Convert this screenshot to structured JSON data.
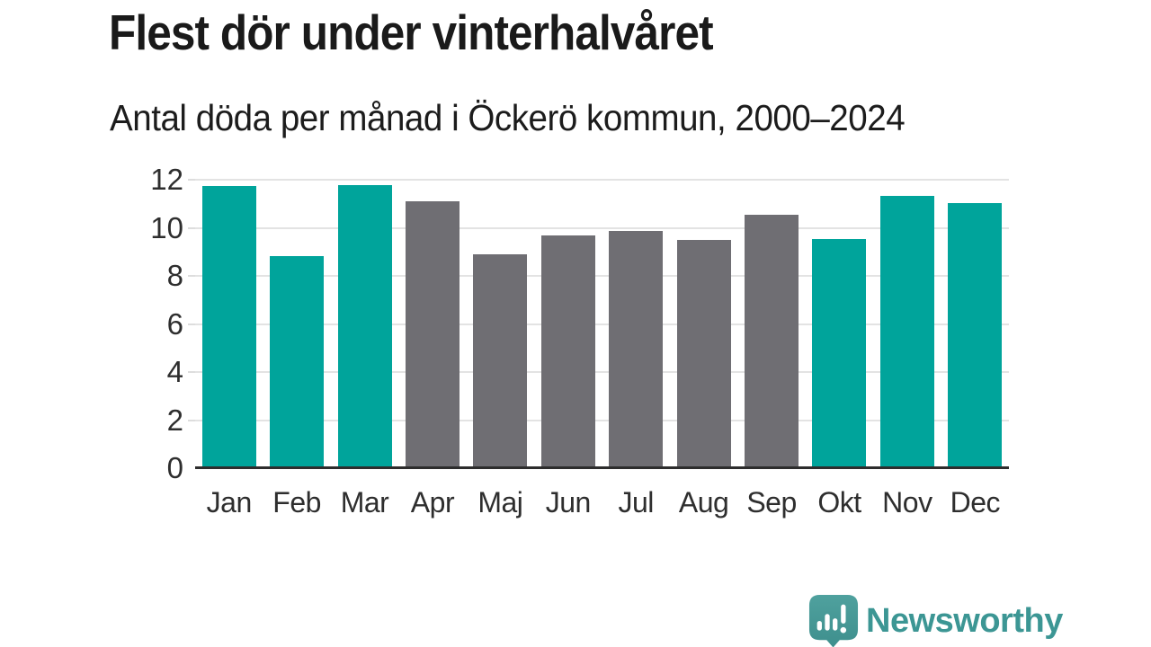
{
  "header": {
    "title": "Flest dör under vinterhalvåret",
    "subtitle": "Antal döda per månad i Öckerö kommun, 2000–2024"
  },
  "chart_data": {
    "type": "bar",
    "title": "Flest dör under vinterhalvåret",
    "subtitle": "Antal döda per månad i Öckerö kommun, 2000–2024",
    "categories": [
      "Jan",
      "Feb",
      "Mar",
      "Apr",
      "Maj",
      "Jun",
      "Jul",
      "Aug",
      "Sep",
      "Okt",
      "Nov",
      "Dec"
    ],
    "values": [
      11.7,
      8.8,
      11.75,
      11.05,
      8.85,
      9.65,
      9.85,
      9.45,
      10.5,
      9.5,
      11.3,
      11.0
    ],
    "groups": [
      "winter",
      "winter",
      "winter",
      "summer",
      "summer",
      "summer",
      "summer",
      "summer",
      "summer",
      "winter",
      "winter",
      "winter"
    ],
    "group_colors": {
      "winter": "#00A49B",
      "summer": "#6F6E73"
    },
    "xlabel": "",
    "ylabel": "",
    "ylim": [
      0,
      12
    ],
    "yticks": [
      0,
      2,
      4,
      6,
      8,
      10,
      12
    ],
    "grid": "horizontal",
    "legend": "none",
    "gridline_color": "#e3e3e3",
    "baseline_color": "#2d2d2d"
  },
  "branding": {
    "logo_text": "Newsworthy",
    "logo_icon": "bar-chart-speech-bubble-icon",
    "logo_text_color": "#3c9694",
    "logo_icon_color": "#4c9e9b"
  }
}
